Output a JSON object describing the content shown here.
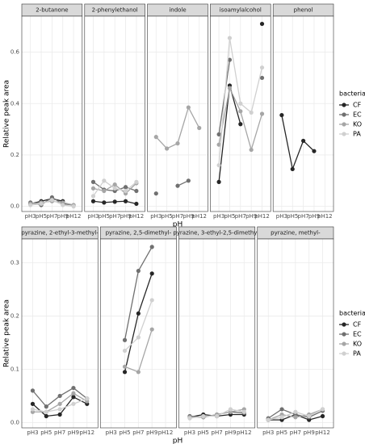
{
  "chart_data": [
    {
      "type": "line",
      "y_label": "Relative peak area",
      "x_label": "pH",
      "legend_title": "bacteria",
      "categories": [
        "pH3",
        "pH5",
        "pH7",
        "pH9",
        "pH12"
      ],
      "ylim": [
        -0.02,
        0.74
      ],
      "yticks": [
        0.0,
        0.2,
        0.4,
        0.6
      ],
      "yticklabels": [
        "0.0",
        "0.2",
        "0.4",
        "0.6"
      ],
      "grid": true,
      "facets": [
        "2-butanone",
        "2-phenylethanol",
        "indole",
        "isoamylalcohol",
        "phenol"
      ],
      "series": [
        {
          "name": "CF",
          "color": "#262626",
          "values": [
            [
              0.01,
              0.02,
              0.03,
              0.02,
              null
            ],
            [
              0.02,
              0.015,
              0.018,
              0.02,
              0.01
            ],
            [
              null,
              null,
              null,
              null,
              null
            ],
            [
              0.095,
              0.47,
              0.32,
              null,
              0.71
            ],
            [
              0.355,
              0.145,
              0.255,
              0.215,
              null
            ]
          ]
        },
        {
          "name": "EC",
          "color": "#707070",
          "values": [
            [
              0.015,
              0.005,
              0.035,
              0.01,
              0.005
            ],
            [
              0.095,
              0.065,
              0.06,
              0.075,
              0.06
            ],
            [
              0.05,
              null,
              0.08,
              0.1,
              null
            ],
            [
              0.28,
              0.57,
              null,
              null,
              0.5
            ],
            [
              null,
              null,
              null,
              null,
              null
            ]
          ]
        },
        {
          "name": "KO",
          "color": "#a6a6a6",
          "values": [
            [
              0.01,
              0.015,
              0.02,
              0.015,
              0.005
            ],
            [
              0.07,
              0.06,
              0.085,
              0.05,
              0.09
            ],
            [
              0.27,
              0.225,
              0.245,
              0.385,
              0.305
            ],
            [
              0.24,
              0.46,
              0.37,
              0.22,
              0.36
            ],
            [
              null,
              null,
              null,
              null,
              null
            ]
          ]
        },
        {
          "name": "PA",
          "color": "#d0d0d0",
          "values": [
            [
              0.005,
              0.01,
              0.025,
              0.005,
              0.0
            ],
            [
              0.04,
              0.1,
              0.07,
              0.06,
              0.095
            ],
            [
              null,
              null,
              null,
              null,
              null
            ],
            [
              0.16,
              0.655,
              0.4,
              0.365,
              0.54
            ],
            [
              null,
              null,
              null,
              null,
              null
            ]
          ]
        }
      ]
    },
    {
      "type": "line",
      "y_label": "Relative peak area",
      "x_label": "pH",
      "legend_title": "bacteria",
      "categories": [
        "pH3",
        "pH5",
        "pH7",
        "pH9",
        "pH12"
      ],
      "ylim": [
        -0.01,
        0.345
      ],
      "yticks": [
        0.0,
        0.1,
        0.2,
        0.3
      ],
      "yticklabels": [
        "0.0",
        "0.1",
        "0.2",
        "0.3"
      ],
      "grid": true,
      "facets": [
        "pyrazine, 2-ethyl-3-methyl-",
        "pyrazine, 2,5-dimethyl-",
        "pyrazine, 3-ethyl-2,5-dimethyl-",
        "pyrazine, methyl-"
      ],
      "series": [
        {
          "name": "CF",
          "color": "#262626",
          "values": [
            [
              0.035,
              0.012,
              0.015,
              0.048,
              0.035
            ],
            [
              null,
              0.095,
              0.205,
              0.28,
              null
            ],
            [
              0.01,
              0.015,
              0.012,
              0.015,
              0.015
            ],
            [
              0.005,
              0.005,
              0.015,
              0.005,
              0.012
            ]
          ]
        },
        {
          "name": "EC",
          "color": "#707070",
          "values": [
            [
              0.06,
              0.03,
              0.05,
              0.065,
              0.045
            ],
            [
              null,
              0.155,
              0.285,
              0.33,
              null
            ],
            [
              0.012,
              0.01,
              0.015,
              0.02,
              0.018
            ],
            [
              0.008,
              0.025,
              0.015,
              0.01,
              0.022
            ]
          ]
        },
        {
          "name": "KO",
          "color": "#a6a6a6",
          "values": [
            [
              0.02,
              0.02,
              0.035,
              0.055,
              0.04
            ],
            [
              null,
              0.105,
              0.095,
              0.175,
              null
            ],
            [
              0.01,
              0.01,
              0.015,
              0.02,
              0.025
            ],
            [
              0.005,
              0.015,
              0.01,
              0.015,
              0.025
            ]
          ]
        },
        {
          "name": "PA",
          "color": "#d0d0d0",
          "values": [
            [
              0.025,
              0.02,
              0.025,
              0.035,
              0.045
            ],
            [
              null,
              0.135,
              0.16,
              0.23,
              null
            ],
            [
              0.008,
              0.012,
              0.012,
              0.025,
              0.02
            ],
            [
              0.005,
              0.01,
              0.02,
              0.012,
              0.025
            ]
          ]
        }
      ]
    }
  ]
}
